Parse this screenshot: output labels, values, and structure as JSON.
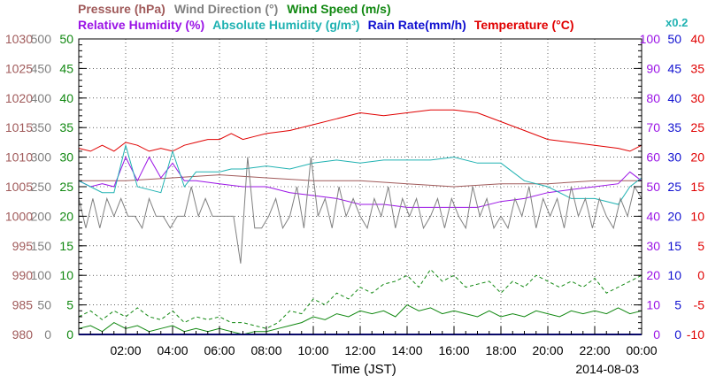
{
  "header": {
    "row1": [
      {
        "text": "Pressure (hPa)",
        "color": "#a05a5a"
      },
      {
        "text": "Wind Direction (°)",
        "color": "#808080"
      },
      {
        "text": "Wind Speed (m/s)",
        "color": "#118811"
      }
    ],
    "row2": [
      {
        "text": "Relative Humidity (%)",
        "color": "#9b14e6"
      },
      {
        "text": "Absolute Humidity (g/m³)",
        "color": "#20b2b2"
      },
      {
        "text": "Rain Rate(mm/h)",
        "color": "#1010d0"
      },
      {
        "text": "Temperature (°C)",
        "color": "#e00000"
      }
    ],
    "x02": {
      "text": "x0.2",
      "color": "#20b2b2"
    }
  },
  "footer": {
    "xlabel": "Time (JST)",
    "date": "2014-08-03"
  },
  "chart_data": {
    "type": "line",
    "x_unit": "hours",
    "xlim": [
      0,
      24
    ],
    "x_ticks": [
      "02:00",
      "04:00",
      "06:00",
      "08:00",
      "10:00",
      "12:00",
      "14:00",
      "16:00",
      "18:00",
      "20:00",
      "22:00",
      "00:00"
    ],
    "axes": {
      "pressure": {
        "label": "Pressure (hPa)",
        "range": [
          980,
          1030
        ],
        "ticks": [
          "1030",
          "1025",
          "1020",
          "1015",
          "1010",
          "1005",
          "1000",
          "995",
          "990",
          "985",
          "980"
        ],
        "color": "#a05a5a"
      },
      "wind_direction": {
        "label": "Wind Direction (°)",
        "range": [
          0,
          500
        ],
        "ticks": [
          "500",
          "450",
          "400",
          "350",
          "300",
          "250",
          "200",
          "150",
          "100",
          "50",
          "0"
        ],
        "color": "#808080"
      },
      "wind_speed": {
        "label": "Wind Speed (m/s)",
        "range": [
          0,
          50
        ],
        "ticks": [
          "50",
          "45",
          "40",
          "35",
          "30",
          "25",
          "20",
          "15",
          "10",
          "5",
          "0"
        ],
        "color": "#118811"
      },
      "relative_humidity": {
        "label": "Relative Humidity (%)",
        "range": [
          0,
          100
        ],
        "ticks": [
          "100",
          "90",
          "80",
          "70",
          "60",
          "50",
          "40",
          "30",
          "20",
          "10",
          "0"
        ],
        "color": "#9b14e6"
      },
      "rain_rate": {
        "label": "Rain Rate(mm/h)",
        "range": [
          0,
          50
        ],
        "ticks": [
          "50",
          "45",
          "40",
          "35",
          "30",
          "25",
          "20",
          "15",
          "10",
          "5",
          "0"
        ],
        "color": "#1010d0"
      },
      "temperature": {
        "label": "Temperature (°C)",
        "range": [
          -10,
          40
        ],
        "ticks": [
          "40",
          "35",
          "30",
          "25",
          "20",
          "15",
          "10",
          "5",
          "0",
          "-5",
          "-10"
        ],
        "color": "#e00000"
      }
    },
    "series": [
      {
        "name": "Temperature (°C)",
        "axis": "temperature",
        "color": "#e00000",
        "dash": "",
        "x": [
          0,
          0.5,
          1,
          1.5,
          2,
          2.5,
          3,
          3.5,
          4,
          4.5,
          5,
          5.5,
          6,
          6.5,
          7,
          7.5,
          8,
          9,
          10,
          11,
          12,
          13,
          14,
          15,
          16,
          17,
          18,
          19,
          20,
          21,
          22,
          23,
          23.5,
          24
        ],
        "y": [
          21.5,
          21,
          22,
          21,
          22.5,
          22,
          21,
          21.5,
          21,
          22,
          22.5,
          23,
          23,
          24,
          23,
          23.5,
          24,
          24.5,
          25.5,
          26.5,
          27.5,
          27,
          27.5,
          28,
          28,
          27.5,
          26,
          24.5,
          23,
          22.5,
          22,
          21.5,
          21,
          22
        ]
      },
      {
        "name": "Pressure (hPa)",
        "axis": "pressure",
        "color": "#a05a5a",
        "dash": "",
        "x": [
          0,
          2,
          4,
          6,
          8,
          10,
          12,
          14,
          16,
          18,
          20,
          22,
          24
        ],
        "y": [
          1006,
          1006,
          1006.5,
          1007,
          1006.5,
          1006,
          1006,
          1005.5,
          1005,
          1005.5,
          1005.5,
          1006,
          1006
        ]
      },
      {
        "name": "Relative Humidity (%)",
        "axis": "relative_humidity",
        "color": "#9b14e6",
        "dash": "",
        "x": [
          0,
          0.5,
          1,
          1.5,
          2,
          2.5,
          3,
          3.5,
          4,
          4.5,
          5,
          6,
          7,
          8,
          9,
          10,
          11,
          12,
          13,
          14,
          15,
          16,
          17,
          18,
          19,
          20,
          21,
          22,
          23,
          23.5,
          24
        ],
        "y": [
          52,
          50,
          51,
          50,
          60,
          52,
          60,
          53,
          58,
          52,
          52,
          51,
          50,
          50,
          48,
          47,
          46,
          44,
          44,
          43,
          43,
          43,
          43,
          45,
          46,
          48,
          49,
          50,
          51,
          55,
          52
        ]
      },
      {
        "name": "Absolute Humidity (g/m³)",
        "axis": "relative_humidity",
        "color": "#20b2b2",
        "dash": "",
        "x": [
          0,
          0.5,
          1,
          1.5,
          2,
          2.5,
          3,
          3.5,
          4,
          4.5,
          5,
          6,
          6.5,
          7,
          8,
          9,
          10,
          11,
          12,
          13,
          14,
          15,
          16,
          17,
          18,
          19,
          20,
          21,
          22,
          23,
          23.5,
          24
        ],
        "y": [
          52,
          50,
          48,
          48,
          64,
          50,
          49,
          48,
          62,
          50,
          55,
          55,
          56,
          56,
          57,
          56,
          58,
          59,
          58,
          59,
          59,
          59,
          60,
          58,
          58,
          52,
          50,
          46,
          46,
          44,
          50,
          53
        ]
      },
      {
        "name": "Wind Direction (°)",
        "axis": "wind_direction",
        "color": "#808080",
        "dash": "",
        "x": [
          0,
          0.3,
          0.6,
          0.9,
          1.2,
          1.5,
          1.8,
          2.1,
          2.4,
          2.7,
          3,
          3.3,
          3.6,
          3.9,
          4.2,
          4.5,
          4.8,
          5.1,
          5.4,
          5.7,
          6,
          6.3,
          6.6,
          6.9,
          7.2,
          7.5,
          7.8,
          8.1,
          8.4,
          8.7,
          9,
          9.3,
          9.6,
          9.9,
          10.2,
          10.5,
          10.8,
          11.1,
          11.4,
          11.7,
          12,
          12.3,
          12.6,
          12.9,
          13.2,
          13.5,
          13.8,
          14.1,
          14.4,
          14.7,
          15,
          15.3,
          15.6,
          15.9,
          16.2,
          16.5,
          16.8,
          17.1,
          17.4,
          17.7,
          18,
          18.3,
          18.6,
          18.9,
          19.2,
          19.5,
          19.8,
          20.1,
          20.4,
          20.7,
          21,
          21.3,
          21.6,
          21.9,
          22.2,
          22.5,
          22.8,
          23.1,
          23.4,
          23.7,
          24
        ],
        "y": [
          230,
          180,
          230,
          180,
          230,
          200,
          230,
          200,
          200,
          180,
          230,
          200,
          200,
          180,
          200,
          200,
          250,
          200,
          230,
          200,
          200,
          200,
          200,
          120,
          300,
          180,
          180,
          200,
          230,
          180,
          200,
          250,
          180,
          300,
          200,
          230,
          180,
          250,
          200,
          230,
          200,
          180,
          230,
          200,
          250,
          180,
          230,
          200,
          230,
          180,
          200,
          230,
          180,
          230,
          200,
          180,
          250,
          200,
          230,
          180,
          200,
          180,
          230,
          200,
          250,
          180,
          230,
          200,
          230,
          180,
          250,
          200,
          230,
          180,
          230,
          200,
          180,
          230,
          200,
          250,
          230
        ]
      },
      {
        "name": "Wind Speed (m/s)",
        "axis": "wind_speed",
        "color": "#118811",
        "dash": "",
        "x": [
          0,
          0.5,
          1,
          1.5,
          2,
          2.5,
          3,
          3.5,
          4,
          4.5,
          5,
          5.5,
          6,
          6.5,
          7,
          7.5,
          8,
          8.5,
          9,
          9.5,
          10,
          10.5,
          11,
          11.5,
          12,
          12.5,
          13,
          13.5,
          14,
          14.5,
          15,
          15.5,
          16,
          16.5,
          17,
          17.5,
          18,
          18.5,
          19,
          19.5,
          20,
          20.5,
          21,
          21.5,
          22,
          22.5,
          23,
          23.5,
          24
        ],
        "y": [
          1,
          1.5,
          0.5,
          2,
          1,
          1.5,
          0.5,
          1,
          1.5,
          0.5,
          1,
          0.5,
          1,
          0.5,
          0,
          0.5,
          0.5,
          1,
          1.5,
          2,
          3,
          2.5,
          3.5,
          3,
          4,
          3.5,
          4,
          3,
          5,
          4,
          4.5,
          3.5,
          4,
          3.5,
          3,
          4,
          3,
          3.5,
          3,
          4,
          3.5,
          3,
          4,
          3.5,
          4,
          3.5,
          4.5,
          3.5,
          4
        ]
      },
      {
        "name": "Wind Speed gust (m/s)",
        "axis": "wind_speed",
        "color": "#118811",
        "dash": "4,3",
        "x": [
          0,
          0.5,
          1,
          1.5,
          2,
          2.5,
          3,
          3.5,
          4,
          4.5,
          5,
          5.5,
          6,
          6.5,
          7,
          7.5,
          8,
          8.5,
          9,
          9.5,
          10,
          10.5,
          11,
          11.5,
          12,
          12.5,
          13,
          13.5,
          14,
          14.5,
          15,
          15.5,
          16,
          16.5,
          17,
          17.5,
          18,
          18.5,
          19,
          19.5,
          20,
          20.5,
          21,
          21.5,
          22,
          22.5,
          23,
          23.5,
          24
        ],
        "y": [
          3,
          4,
          2.5,
          4,
          3,
          4.5,
          3,
          2.5,
          4,
          2,
          3,
          2.5,
          3,
          2,
          2,
          1.5,
          1,
          2,
          4,
          3.5,
          6,
          5,
          7,
          6,
          8,
          7,
          8.5,
          9,
          10,
          8,
          11,
          9,
          10,
          8,
          8.5,
          9,
          7,
          9,
          8,
          10,
          9,
          8,
          9,
          8,
          9.5,
          7,
          8,
          9,
          10
        ]
      },
      {
        "name": "Rain Rate(mm/h)",
        "axis": "rain_rate",
        "color": "#1010d0",
        "dash": "",
        "x": [
          0,
          24
        ],
        "y": [
          0,
          0
        ]
      }
    ]
  }
}
